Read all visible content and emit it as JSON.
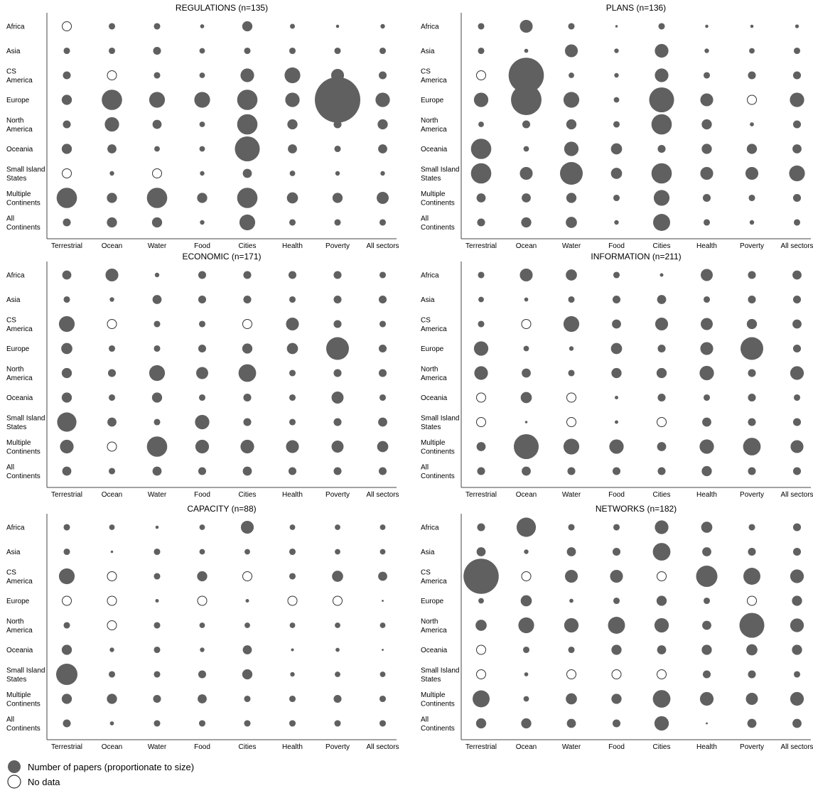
{
  "chart_data": {
    "type": "bubble-matrix",
    "rows": [
      "Africa",
      "Asia",
      "CS America",
      "Europe",
      "North America",
      "Oceania",
      "Small Island States",
      "Multiple Continents",
      "All Continents"
    ],
    "row_label_lines": [
      [
        "Africa"
      ],
      [
        "Asia"
      ],
      [
        "CS",
        "America"
      ],
      [
        "Europe"
      ],
      [
        "North",
        "America"
      ],
      [
        "Oceania"
      ],
      [
        "Small Island",
        "States"
      ],
      [
        "Multiple",
        "Continents"
      ],
      [
        "All",
        "Continents"
      ]
    ],
    "columns": [
      "Terrestrial",
      "Ocean",
      "Water",
      "Food",
      "Cities",
      "Health",
      "Poverty",
      "All sectors"
    ],
    "value_note": "Relative bubble size (approx.); 'nd' = no data (hollow circle)",
    "colors": {
      "filled": "#606060",
      "empty_stroke": "#333333",
      "axis": "#444444"
    },
    "panels": [
      {
        "title": "REGULATIONS (n=135)",
        "cells": [
          [
            "nd",
            2,
            2,
            0.8,
            5,
            1.2,
            0.5,
            1
          ],
          [
            2,
            2,
            3,
            1.5,
            2,
            2,
            2,
            2
          ],
          [
            3,
            "nd",
            2,
            1.5,
            9,
            12,
            8,
            3
          ],
          [
            5,
            20,
            12,
            12,
            20,
            10,
            100,
            10
          ],
          [
            3,
            10,
            4,
            1.5,
            20,
            5,
            3,
            5
          ],
          [
            5,
            4,
            1.5,
            1.5,
            30,
            4,
            2,
            4
          ],
          [
            "nd",
            1,
            "nd",
            1,
            4,
            1.5,
            1,
            1
          ],
          [
            20,
            5,
            20,
            5,
            20,
            6,
            5,
            7
          ],
          [
            3,
            5,
            5,
            1,
            12,
            2,
            2,
            2
          ]
        ]
      },
      {
        "title": "PLANS (n=136)",
        "cells": [
          [
            2,
            8,
            2,
            0.3,
            2,
            0.5,
            0.5,
            0.7
          ],
          [
            2,
            0.8,
            8,
            1,
            9,
            1,
            1.5,
            2
          ],
          [
            "nd",
            60,
            1.5,
            1,
            9,
            2,
            3,
            3
          ],
          [
            10,
            45,
            12,
            1.5,
            30,
            8,
            "nd",
            10
          ],
          [
            1.5,
            3,
            5,
            2,
            20,
            5,
            0.8,
            3
          ],
          [
            20,
            1.5,
            10,
            6,
            3,
            5,
            5,
            4
          ],
          [
            20,
            8,
            25,
            6,
            20,
            8,
            8,
            12
          ],
          [
            4,
            4,
            5,
            2,
            12,
            3,
            2,
            3
          ],
          [
            3,
            5,
            6,
            1,
            14,
            2,
            1,
            2
          ]
        ]
      },
      {
        "title": "ECONOMIC (n=171)",
        "cells": [
          [
            4,
            8,
            1,
            3,
            3,
            3,
            3,
            2
          ],
          [
            2,
            1,
            4,
            3,
            3,
            2,
            3,
            3
          ],
          [
            12,
            "nd",
            2,
            2,
            "nd",
            8,
            3,
            2
          ],
          [
            6,
            2,
            2,
            3,
            5,
            6,
            25,
            3
          ],
          [
            5,
            3,
            12,
            7,
            15,
            2,
            3,
            3
          ],
          [
            5,
            2,
            5,
            2,
            3,
            2,
            7,
            2
          ],
          [
            18,
            4,
            2,
            10,
            3,
            2,
            3,
            4
          ],
          [
            9,
            "nd",
            20,
            9,
            9,
            8,
            7,
            6
          ],
          [
            4,
            2,
            4,
            3,
            4,
            3,
            3,
            3
          ]
        ]
      },
      {
        "title": "INFORMATION (n=211)",
        "cells": [
          [
            2,
            8,
            6,
            2,
            0.6,
            7,
            3,
            4
          ],
          [
            1.5,
            0.8,
            2,
            3,
            4,
            2,
            3,
            3
          ],
          [
            2,
            "nd",
            12,
            4,
            8,
            7,
            5,
            4
          ],
          [
            10,
            1.5,
            1,
            6,
            3,
            8,
            25,
            3
          ],
          [
            9,
            4,
            2,
            5,
            5,
            10,
            3,
            9
          ],
          [
            "nd",
            6,
            "nd",
            0.6,
            3,
            2,
            3,
            2
          ],
          [
            "nd",
            0.3,
            "nd",
            0.6,
            "nd",
            4,
            3,
            3
          ],
          [
            4,
            30,
            12,
            10,
            4,
            10,
            15,
            8
          ],
          [
            3,
            4,
            3,
            3,
            3,
            5,
            3,
            3
          ]
        ]
      },
      {
        "title": "CAPACITY (n=88)",
        "cells": [
          [
            2,
            1.5,
            0.5,
            1.5,
            8,
            1.5,
            1.5,
            1.5
          ],
          [
            2,
            0.3,
            2,
            1.5,
            1.5,
            2,
            1.5,
            1.5
          ],
          [
            12,
            "nd",
            2,
            5,
            "nd",
            2,
            6,
            4
          ],
          [
            "nd",
            "nd",
            0.6,
            "nd",
            0.6,
            "nd",
            "nd",
            0.2
          ],
          [
            2,
            "nd",
            2,
            1.5,
            1.5,
            1.5,
            1.5,
            1.5
          ],
          [
            5,
            1,
            2,
            1,
            4,
            0.4,
            0.8,
            0.2
          ],
          [
            22,
            2,
            2,
            3,
            5,
            1,
            1.5,
            1.5
          ],
          [
            5,
            5,
            3,
            4,
            2,
            2,
            3,
            2
          ],
          [
            3,
            0.8,
            2,
            2,
            2,
            2,
            2,
            2
          ]
        ]
      },
      {
        "title": "NETWORKS (n=182)",
        "cells": [
          [
            3,
            18,
            2,
            2,
            9,
            6,
            2,
            3
          ],
          [
            4,
            1,
            4,
            3,
            15,
            4,
            3,
            3
          ],
          [
            60,
            "nd",
            8,
            8,
            "nd",
            22,
            14,
            9
          ],
          [
            1.5,
            6,
            0.8,
            2,
            5,
            2,
            "nd",
            5
          ],
          [
            6,
            12,
            10,
            14,
            10,
            4,
            30,
            9
          ],
          [
            "nd",
            2,
            2,
            5,
            4,
            5,
            6,
            5
          ],
          [
            "nd",
            0.8,
            "nd",
            "nd",
            "nd",
            3,
            3,
            2
          ],
          [
            14,
            1.5,
            6,
            5,
            15,
            9,
            7,
            9
          ],
          [
            5,
            5,
            4,
            3,
            10,
            0.2,
            4,
            4
          ]
        ]
      }
    ],
    "legend": [
      {
        "label": "Number of papers (proportionate to size)",
        "symbol": "filled"
      },
      {
        "label": "No data",
        "symbol": "empty"
      }
    ]
  }
}
